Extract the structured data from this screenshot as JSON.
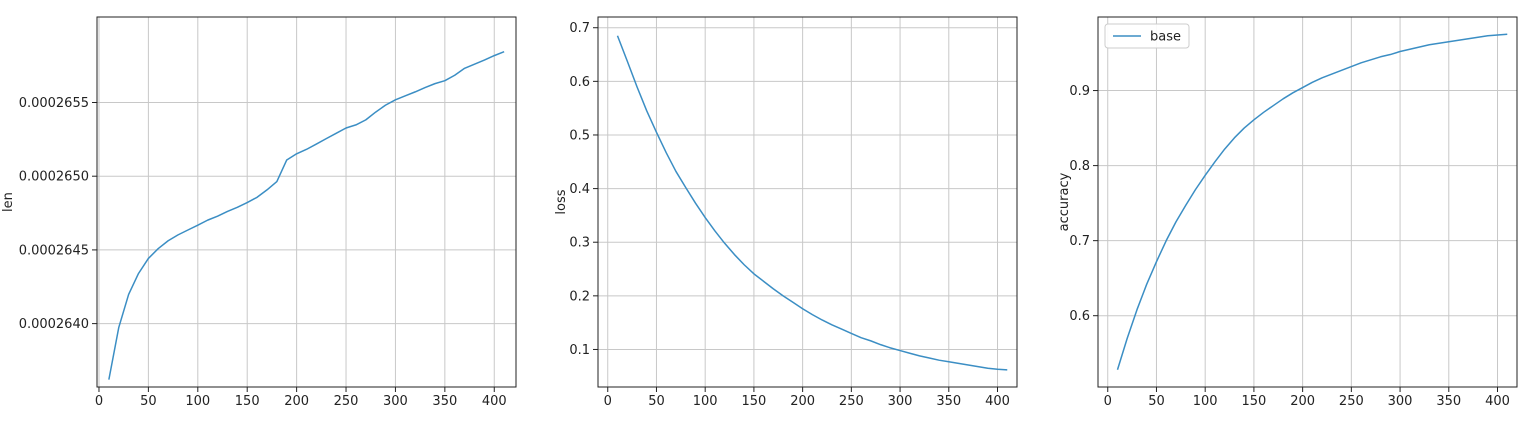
{
  "figure": {
    "series_color": "#3b8ec4"
  },
  "chart_data": [
    {
      "type": "line",
      "xlabel": "",
      "ylabel": "len",
      "grid": true,
      "xlim": [
        -2,
        422
      ],
      "ylim": [
        0.00026357,
        0.00026608
      ],
      "x_ticks": [
        0,
        50,
        100,
        150,
        200,
        250,
        300,
        350,
        400
      ],
      "y_ticks": [
        0.000264,
        0.0002645,
        0.000265,
        0.0002655
      ],
      "y_tick_labels": [
        "0.0002640",
        "0.0002645",
        "0.0002650",
        "0.0002655"
      ],
      "series": [
        {
          "x": [
            10,
            20,
            30,
            40,
            50,
            60,
            70,
            80,
            90,
            100,
            110,
            120,
            130,
            140,
            150,
            160,
            170,
            180,
            190,
            200,
            210,
            220,
            230,
            240,
            250,
            260,
            270,
            280,
            290,
            300,
            310,
            320,
            330,
            340,
            350,
            360,
            370,
            380,
            390,
            400,
            410
          ],
          "y": [
            0.00026362,
            0.000263973,
            0.000264198,
            0.00026434,
            0.000264442,
            0.000264509,
            0.000264562,
            0.000264602,
            0.000264635,
            0.000264668,
            0.000264702,
            0.000264729,
            0.000264761,
            0.000264789,
            0.000264821,
            0.000264857,
            0.000264907,
            0.000264964,
            0.00026511,
            0.000265152,
            0.000265182,
            0.000265218,
            0.000265255,
            0.000265291,
            0.000265327,
            0.000265348,
            0.000265382,
            0.000265435,
            0.000265482,
            0.000265518,
            0.000265545,
            0.000265572,
            0.000265601,
            0.000265628,
            0.000265648,
            0.000265685,
            0.000265732,
            0.00026576,
            0.000265788,
            0.000265818,
            0.000265845
          ]
        }
      ]
    },
    {
      "type": "line",
      "xlabel": "",
      "ylabel": "loss",
      "grid": true,
      "xlim": [
        -10,
        420
      ],
      "ylim": [
        0.03,
        0.72
      ],
      "x_ticks": [
        0,
        50,
        100,
        150,
        200,
        250,
        300,
        350,
        400
      ],
      "y_ticks": [
        0.1,
        0.2,
        0.3,
        0.4,
        0.5,
        0.6,
        0.7
      ],
      "y_tick_labels": [
        "0.1",
        "0.2",
        "0.3",
        "0.4",
        "0.5",
        "0.6",
        "0.7"
      ],
      "series": [
        {
          "x": [
            10,
            20,
            30,
            40,
            50,
            60,
            70,
            80,
            90,
            100,
            110,
            120,
            130,
            140,
            150,
            160,
            170,
            180,
            190,
            200,
            210,
            220,
            230,
            240,
            250,
            260,
            270,
            280,
            290,
            300,
            310,
            320,
            330,
            340,
            350,
            360,
            370,
            380,
            390,
            400,
            410
          ],
          "y": [
            0.685,
            0.638,
            0.59,
            0.545,
            0.505,
            0.467,
            0.432,
            0.402,
            0.373,
            0.346,
            0.321,
            0.298,
            0.277,
            0.258,
            0.241,
            0.227,
            0.213,
            0.2,
            0.188,
            0.176,
            0.165,
            0.155,
            0.146,
            0.138,
            0.13,
            0.122,
            0.116,
            0.109,
            0.103,
            0.098,
            0.093,
            0.088,
            0.084,
            0.08,
            0.077,
            0.074,
            0.071,
            0.068,
            0.065,
            0.063,
            0.062
          ]
        }
      ]
    },
    {
      "type": "line",
      "xlabel": "",
      "ylabel": "accuracy",
      "grid": true,
      "xlim": [
        -10,
        420
      ],
      "ylim": [
        0.505,
        0.998
      ],
      "x_ticks": [
        0,
        50,
        100,
        150,
        200,
        250,
        300,
        350,
        400
      ],
      "y_ticks": [
        0.6,
        0.7,
        0.8,
        0.9
      ],
      "y_tick_labels": [
        "0.6",
        "0.7",
        "0.8",
        "0.9"
      ],
      "legend": {
        "position": "top-left",
        "entries": [
          "base"
        ]
      },
      "series": [
        {
          "name": "base",
          "x": [
            10,
            20,
            30,
            40,
            50,
            60,
            70,
            80,
            90,
            100,
            110,
            120,
            130,
            140,
            150,
            160,
            170,
            180,
            190,
            200,
            210,
            220,
            230,
            240,
            250,
            260,
            270,
            280,
            290,
            300,
            310,
            320,
            330,
            340,
            350,
            360,
            370,
            380,
            390,
            400,
            410
          ],
          "y": [
            0.528,
            0.57,
            0.608,
            0.642,
            0.672,
            0.7,
            0.725,
            0.747,
            0.768,
            0.787,
            0.805,
            0.822,
            0.837,
            0.85,
            0.861,
            0.871,
            0.88,
            0.889,
            0.897,
            0.904,
            0.911,
            0.917,
            0.922,
            0.927,
            0.932,
            0.937,
            0.941,
            0.945,
            0.948,
            0.952,
            0.955,
            0.958,
            0.961,
            0.963,
            0.965,
            0.967,
            0.969,
            0.971,
            0.973,
            0.974,
            0.975
          ]
        }
      ]
    }
  ]
}
